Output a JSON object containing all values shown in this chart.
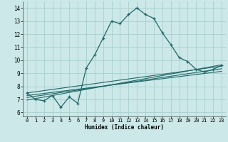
{
  "xlabel": "Humidex (Indice chaleur)",
  "background_color": "#cce8e8",
  "grid_color": "#a8d0d0",
  "line_color": "#206868",
  "xlim": [
    -0.5,
    23.5
  ],
  "ylim": [
    5.7,
    14.5
  ],
  "xticks": [
    0,
    1,
    2,
    3,
    4,
    5,
    6,
    7,
    8,
    9,
    10,
    11,
    12,
    13,
    14,
    15,
    16,
    17,
    18,
    19,
    20,
    21,
    22,
    23
  ],
  "yticks": [
    6,
    7,
    8,
    9,
    10,
    11,
    12,
    13,
    14
  ],
  "curve1_x": [
    0,
    1,
    2,
    3,
    4,
    5,
    6,
    7,
    8,
    9,
    10,
    11,
    12,
    13,
    14,
    15,
    16,
    17,
    18,
    19,
    20,
    21,
    22,
    23
  ],
  "curve1_y": [
    7.5,
    7.0,
    6.9,
    7.3,
    6.4,
    7.2,
    6.7,
    9.4,
    10.4,
    11.7,
    13.0,
    12.8,
    13.5,
    14.0,
    13.5,
    13.2,
    12.1,
    11.2,
    10.2,
    9.9,
    9.3,
    9.1,
    9.3,
    9.6
  ],
  "line2_x": [
    0,
    23
  ],
  "line2_y": [
    7.5,
    9.55
  ],
  "line3_x": [
    0,
    23
  ],
  "line3_y": [
    7.3,
    9.15
  ],
  "line4_x": [
    0,
    23
  ],
  "line4_y": [
    7.15,
    9.35
  ],
  "line5_x": [
    0,
    23
  ],
  "line5_y": [
    6.95,
    9.65
  ]
}
